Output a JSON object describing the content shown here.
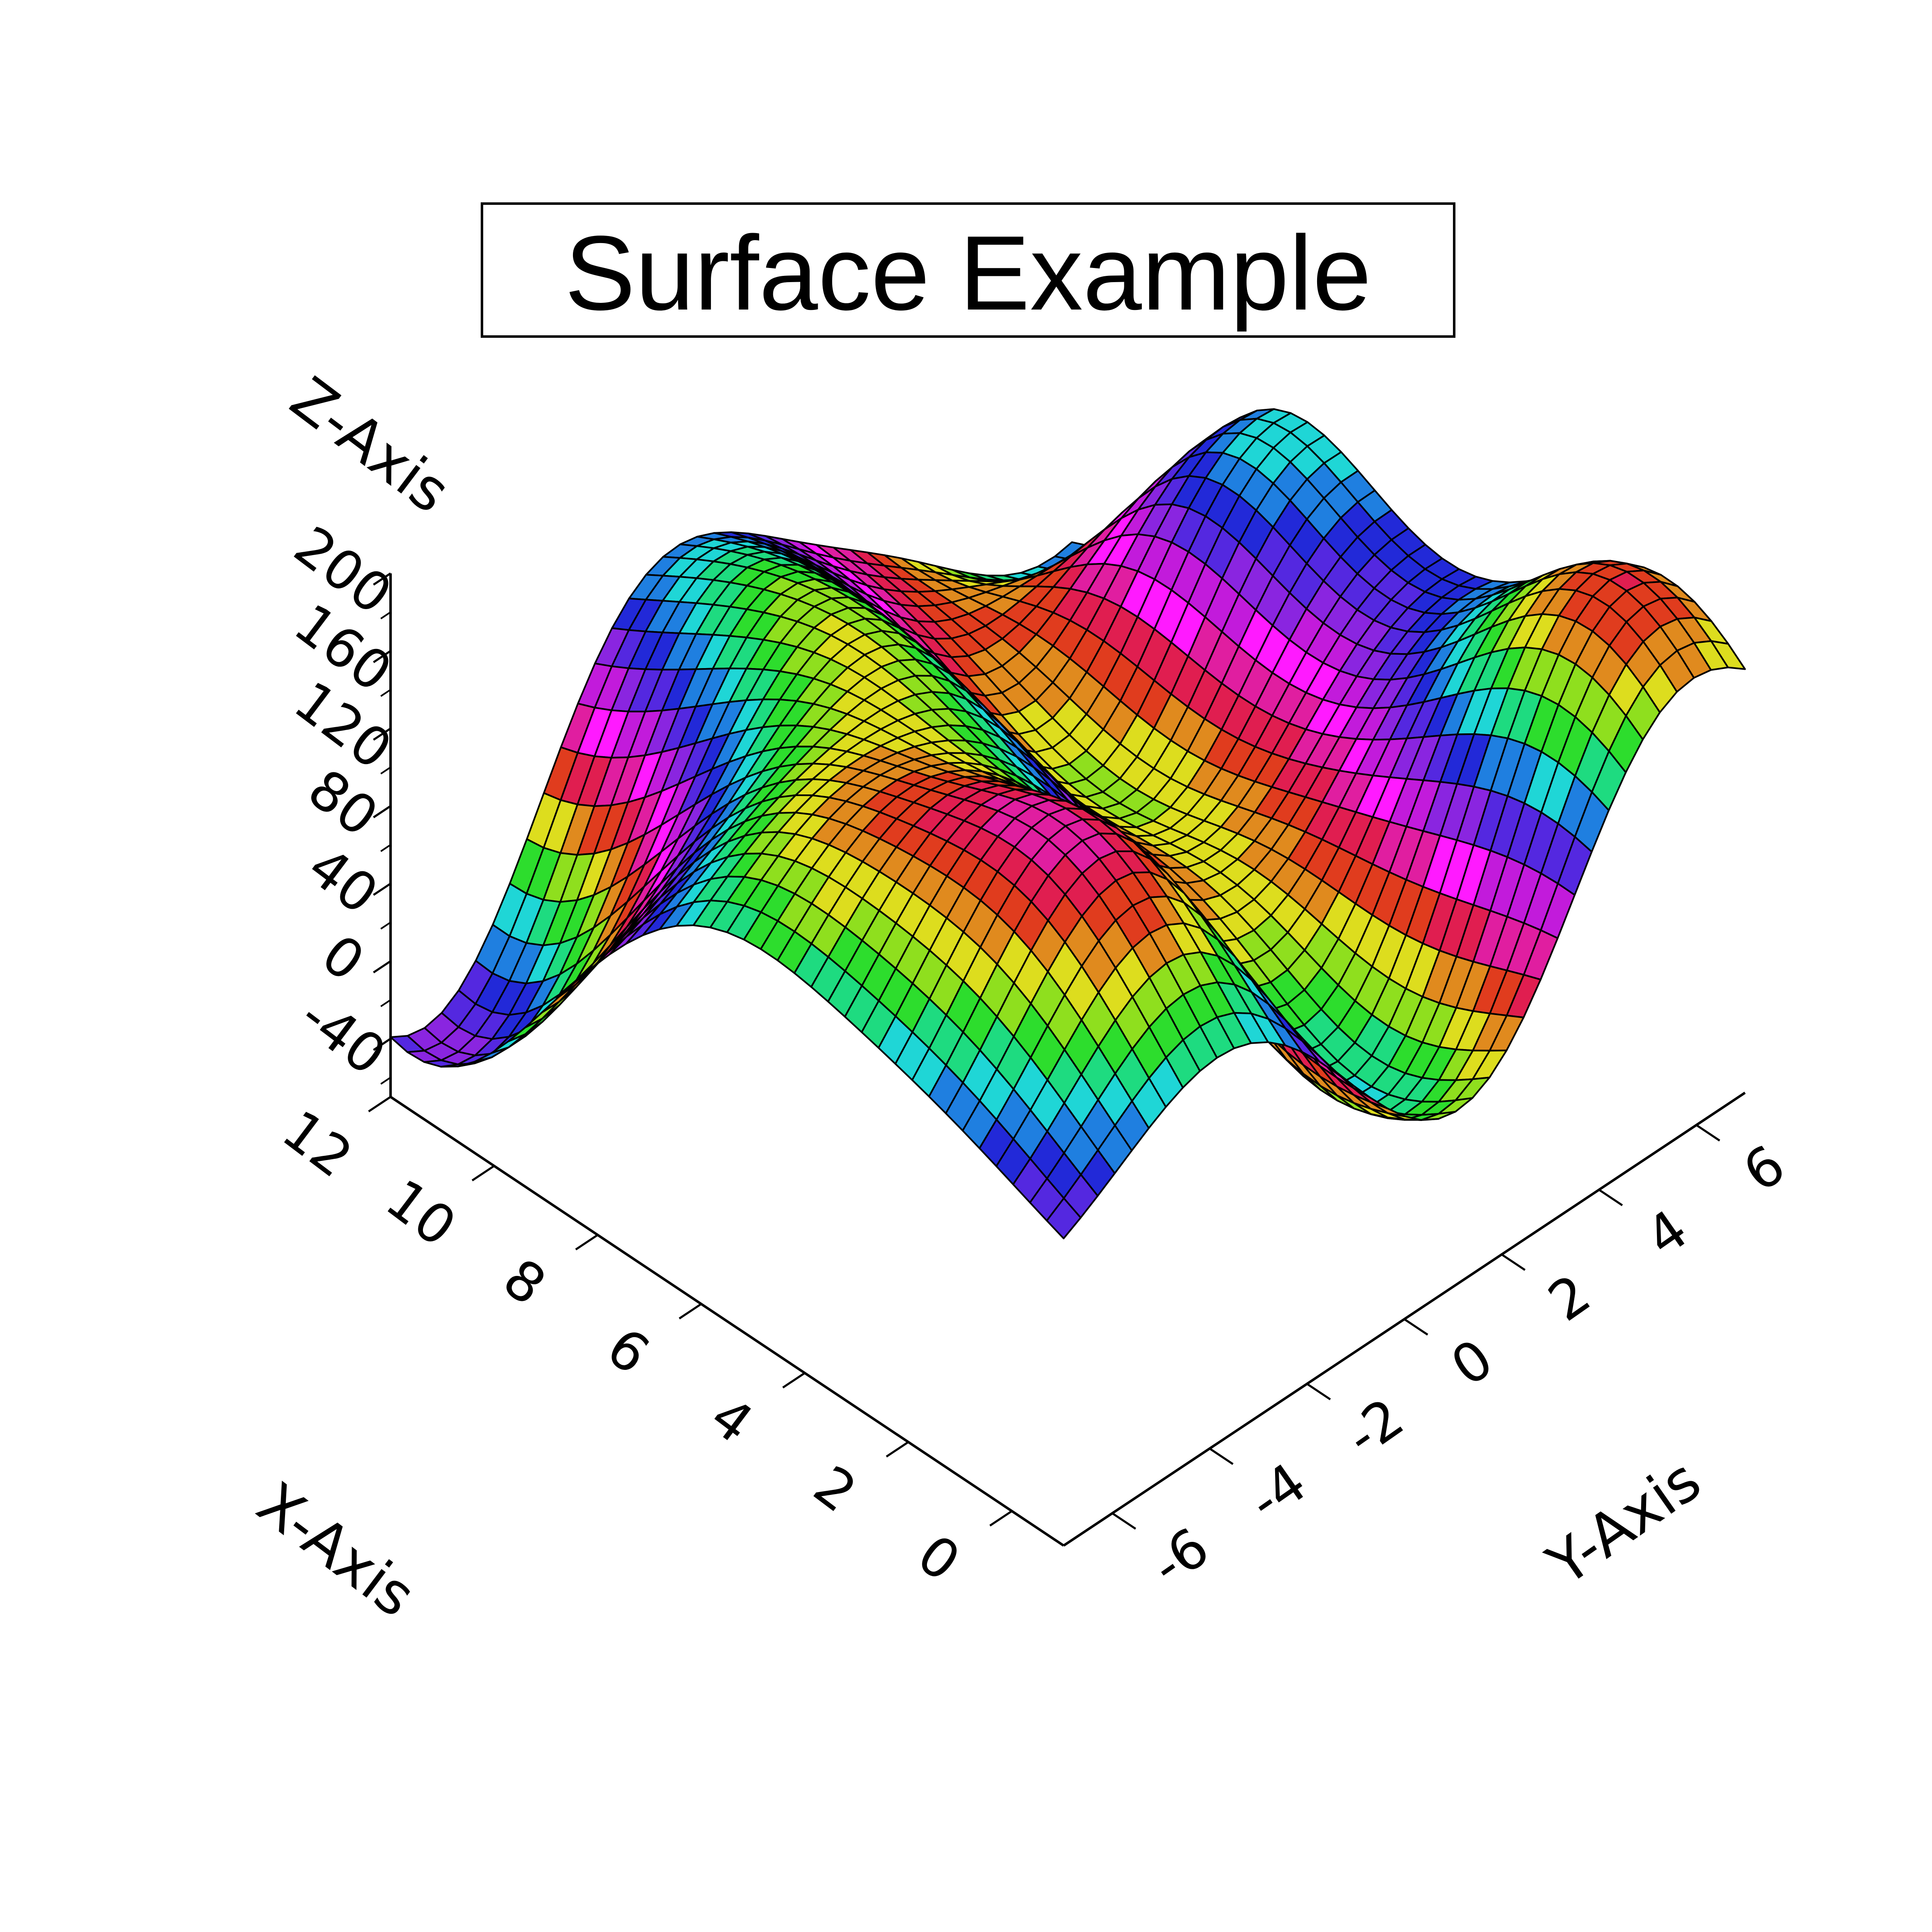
{
  "chart_data": {
    "type": "surface",
    "title": "Surface Example",
    "xlabel": "X-Axis",
    "ylabel": "Y-Axis",
    "zlabel": "Z-Axis",
    "xlim": [
      -1,
      12
    ],
    "ylim": [
      -7,
      7
    ],
    "zlim": [
      -70,
      200
    ],
    "x_ticks": [
      "0",
      "2",
      "4",
      "6",
      "8",
      "10",
      "12"
    ],
    "y_ticks": [
      "-6",
      "-4",
      "-2",
      "0",
      "2",
      "4",
      "6"
    ],
    "z_ticks": [
      "-40",
      "0",
      "40",
      "80",
      "120",
      "160",
      "200"
    ],
    "grid": {
      "nx": 41,
      "ny": 41
    },
    "z_profile": {
      "base": 70,
      "peaks": [
        {
          "x": 0.5,
          "y": 5.5,
          "z": 200
        },
        {
          "x": 1.5,
          "y": -3.5,
          "z": 190
        },
        {
          "x": 8.5,
          "y": 6.0,
          "z": 180
        },
        {
          "x": 5.5,
          "y": -5.5,
          "z": 140
        },
        {
          "x": 7.5,
          "y": -1.0,
          "z": 150
        },
        {
          "x": 11.0,
          "y": -2.0,
          "z": 130
        }
      ],
      "pits": [
        {
          "x": 1.0,
          "y": 1.5,
          "z": -40
        },
        {
          "x": 7.5,
          "y": 2.5,
          "z": -30
        },
        {
          "x": 11.5,
          "y": -6.0,
          "z": -60
        },
        {
          "x": 11.5,
          "y": 6.5,
          "z": -50
        }
      ]
    },
    "colormap": [
      "#ff1aff",
      "#c21bdb",
      "#8a25e0",
      "#5428e0",
      "#2229d8",
      "#1f7fe0",
      "#1fd6d6",
      "#1edb80",
      "#2ddd2d",
      "#8fdf1e",
      "#dddd1e",
      "#e08a1e",
      "#e03c1e",
      "#e01e50",
      "#e01ea0"
    ],
    "grid_lines": false,
    "legend": "none"
  }
}
